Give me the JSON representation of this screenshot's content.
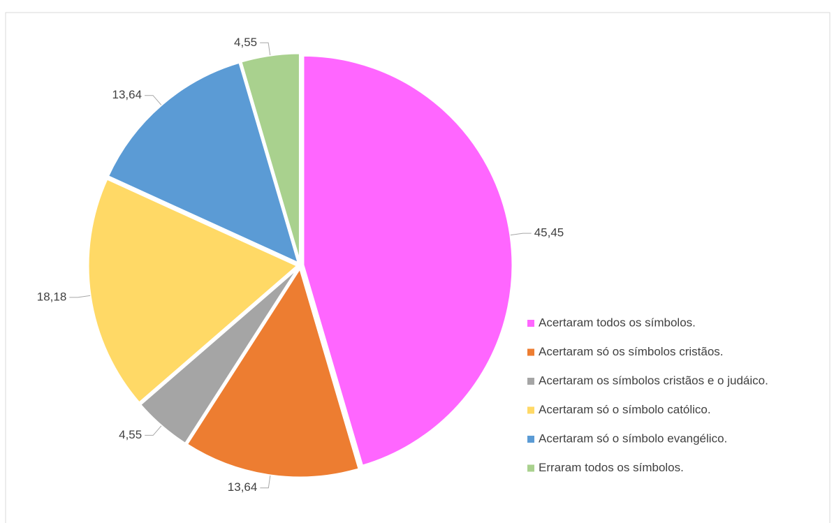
{
  "chart_data": {
    "type": "pie",
    "categories": [
      "Acertaram todos os símbolos.",
      "Acertaram só os símbolos cristãos.",
      "Acertaram os símbolos cristãos e o judáico.",
      "Acertaram só o símbolo católico.",
      "Acertaram só o símbolo evangélico.",
      "Erraram todos os símbolos."
    ],
    "values": [
      45.45,
      13.64,
      4.55,
      18.18,
      13.64,
      4.55
    ],
    "value_labels": [
      "45,45",
      "13,64",
      "4,55",
      "18,18",
      "13,64",
      "4,55"
    ],
    "colors": [
      "#ff66ff",
      "#ed7d31",
      "#a5a5a5",
      "#ffd966",
      "#5b9bd5",
      "#a9d18e"
    ],
    "legend": "right"
  }
}
